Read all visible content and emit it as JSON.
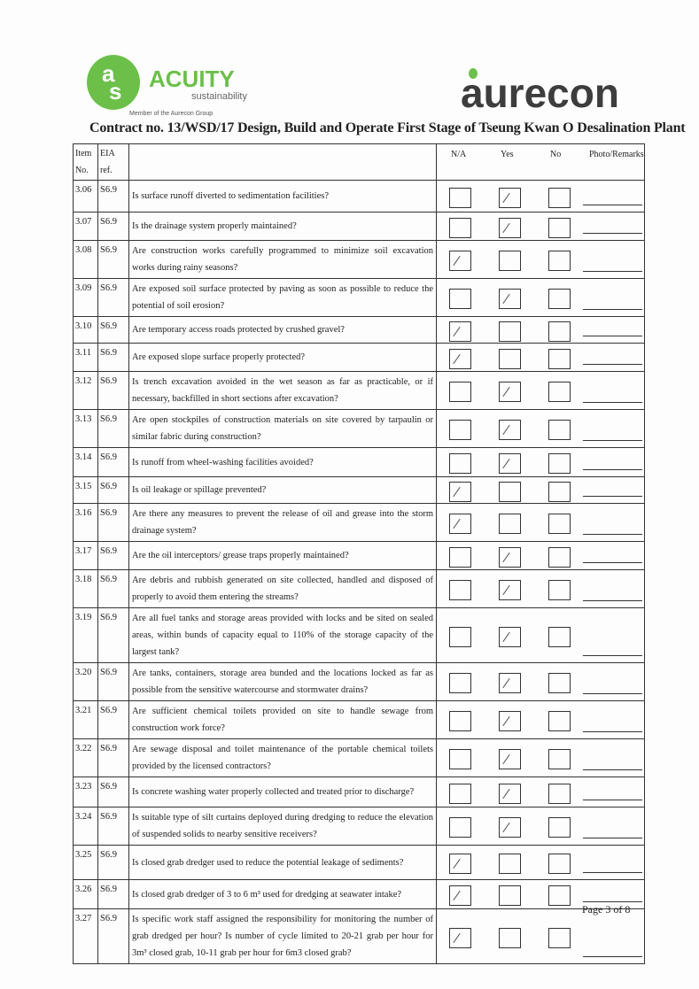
{
  "logos": {
    "acuity": {
      "brand": "ACUITY",
      "sub": "sustainability",
      "tagline": "Member of the Aurecon Group",
      "color": "#6cc04a"
    },
    "aurecon": {
      "brand": "aurecon",
      "color": "#3d3d3d",
      "dot": "#6cc04a"
    }
  },
  "title": "Contract no.  13/WSD/17 Design, Build and Operate First Stage of Tseung Kwan O Desalination Plant",
  "headers": {
    "item": "Item No.",
    "eia": "EIA ref.",
    "na": "N/A",
    "yes": "Yes",
    "no": "No",
    "remarks": "Photo/Remarks"
  },
  "rows": [
    {
      "item": "3.06",
      "eia": "S6.9",
      "q": "Is surface runoff diverted to sedimentation facilities?",
      "answer": "yes"
    },
    {
      "item": "3.07",
      "eia": "S6.9",
      "q": "Is the drainage system properly maintained?",
      "answer": "yes"
    },
    {
      "item": "3.08",
      "eia": "S6.9",
      "q": "Are construction works carefully programmed to minimize soil excavation works during rainy seasons?",
      "answer": "na"
    },
    {
      "item": "3.09",
      "eia": "S6.9",
      "q": "Are exposed soil surface protected by paving as soon as possible to reduce the potential of soil erosion?",
      "answer": "yes"
    },
    {
      "item": "3.10",
      "eia": "S6.9",
      "q": "Are temporary access roads protected by crushed gravel?",
      "answer": "na"
    },
    {
      "item": "3.11",
      "eia": "S6.9",
      "q": "Are exposed slope surface properly protected?",
      "answer": "na"
    },
    {
      "item": "3.12",
      "eia": "S6.9",
      "q": "Is trench excavation avoided in the wet season as far as practicable, or if necessary, backfilled in short sections after excavation?",
      "answer": "yes"
    },
    {
      "item": "3.13",
      "eia": "S6.9",
      "q": "Are open stockpiles of construction materials on site covered by tarpaulin or similar fabric during construction?",
      "answer": "yes"
    },
    {
      "item": "3.14",
      "eia": "S6.9",
      "q": "Is runoff from wheel-washing facilities avoided?",
      "answer": "yes"
    },
    {
      "item": "3.15",
      "eia": "S6.9",
      "q": "Is oil leakage or spillage prevented?",
      "answer": "na"
    },
    {
      "item": "3.16",
      "eia": "S6.9",
      "q": "Are there any measures to prevent the release of oil and grease into the storm drainage system?",
      "answer": "na"
    },
    {
      "item": "3.17",
      "eia": "S6.9",
      "q": "Are the oil interceptors/ grease traps properly maintained?",
      "answer": "yes"
    },
    {
      "item": "3.18",
      "eia": "S6.9",
      "q": "Are debris and rubbish generated on site collected, handled and disposed of properly to avoid them entering the streams?",
      "answer": "yes"
    },
    {
      "item": "3.19",
      "eia": "S6.9",
      "q": "Are all fuel tanks and storage areas provided with locks and be sited on sealed areas, within bunds of capacity equal to 110% of the storage capacity of the largest tank?",
      "answer": "yes"
    },
    {
      "item": "3.20",
      "eia": "S6.9",
      "q": "Are tanks, containers, storage area bunded and the locations locked as far as possible from the sensitive watercourse and stormwater drains?",
      "answer": "yes"
    },
    {
      "item": "3.21",
      "eia": "S6.9",
      "q": "Are sufficient chemical toilets provided on site to handle sewage from construction work force?",
      "answer": "yes"
    },
    {
      "item": "3.22",
      "eia": "S6.9",
      "q": "Are sewage disposal and toilet maintenance of the portable chemical toilets provided by the licensed contractors?",
      "answer": "yes"
    },
    {
      "item": "3.23",
      "eia": "S6.9",
      "q": "Is concrete washing water properly collected and treated prior to discharge?",
      "answer": "yes"
    },
    {
      "item": "3.24",
      "eia": "S6.9",
      "q": "Is suitable type of silt curtains deployed during dredging to reduce the elevation of suspended solids to nearby sensitive receivers?",
      "answer": "yes"
    },
    {
      "item": "3.25",
      "eia": "S6.9",
      "q": "Is closed grab dredger used to reduce the potential leakage of sediments?",
      "answer": "na"
    },
    {
      "item": "3.26",
      "eia": "S6.9",
      "q": "Is closed grab dredger of 3 to 6 m³ used for dredging at seawater intake?",
      "answer": "na"
    },
    {
      "item": "3.27",
      "eia": "S6.9",
      "q": "Is specific work staff assigned the responsibility for monitoring the number of grab dredged per hour? Is number of cycle limited to 20-21 grab per hour for 3m³ closed grab, 10-11 grab per hour for 6m3 closed grab?",
      "answer": "na"
    }
  ],
  "footer": {
    "page": "Page 3 of 8"
  }
}
